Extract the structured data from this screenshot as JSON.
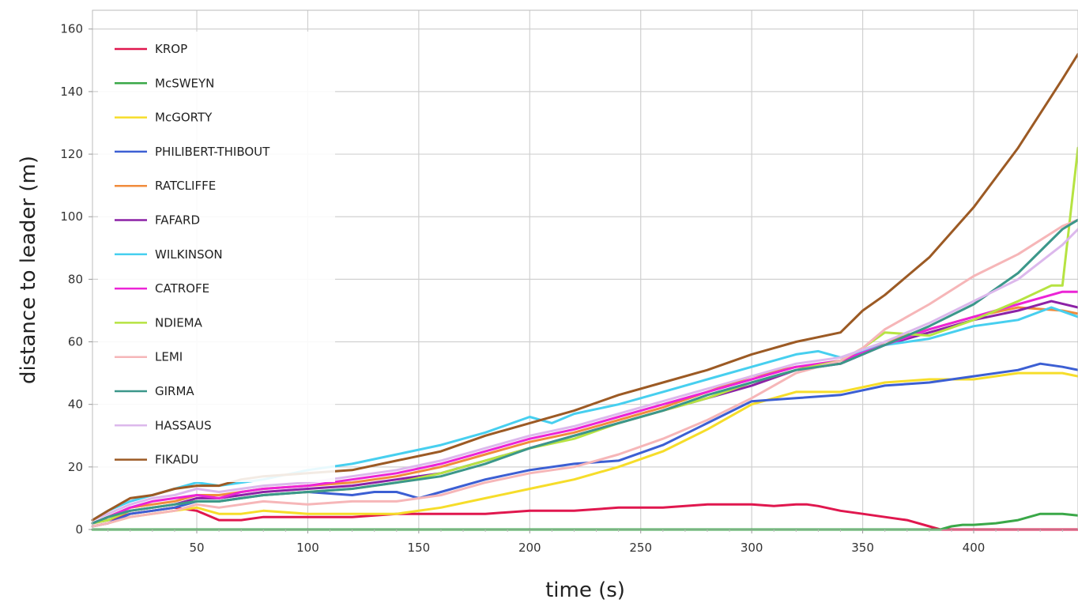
{
  "chart_data": {
    "type": "line",
    "title": "",
    "xlabel": "time (s)",
    "ylabel": "distance to leader (m)",
    "xlim": [
      3,
      447
    ],
    "ylim": [
      0,
      166
    ],
    "xticks": [
      50,
      100,
      150,
      200,
      250,
      300,
      350,
      400
    ],
    "yticks": [
      0,
      20,
      40,
      60,
      80,
      100,
      120,
      140,
      160
    ],
    "grid": true,
    "legend_position": "top-left",
    "series": [
      {
        "name": "KROP",
        "color": "#e0174e",
        "x": [
          3,
          10,
          20,
          30,
          40,
          50,
          60,
          70,
          80,
          100,
          120,
          140,
          160,
          180,
          200,
          220,
          240,
          260,
          280,
          290,
          300,
          310,
          320,
          325,
          330,
          340,
          350,
          360,
          370,
          380,
          385,
          390,
          400,
          420,
          440,
          447
        ],
        "y": [
          2,
          3,
          5,
          6,
          7,
          6,
          3,
          3,
          4,
          4,
          4,
          5,
          5,
          5,
          6,
          6,
          7,
          7,
          8,
          8,
          8,
          7.5,
          8,
          8,
          7.5,
          6,
          5,
          4,
          3,
          1,
          0,
          0,
          0,
          0,
          0,
          0
        ]
      },
      {
        "name": "McSWEYN",
        "color": "#3aa848",
        "x": [
          3,
          100,
          200,
          300,
          385,
          390,
          395,
          400,
          410,
          420,
          430,
          440,
          447
        ],
        "y": [
          0,
          0,
          0,
          0,
          0,
          1,
          1.5,
          1.5,
          2,
          3,
          5,
          5,
          4.5
        ]
      },
      {
        "name": "McGORTY",
        "color": "#f6dd2a",
        "x": [
          3,
          10,
          20,
          30,
          40,
          50,
          60,
          70,
          80,
          100,
          120,
          140,
          160,
          180,
          200,
          220,
          240,
          260,
          280,
          300,
          320,
          340,
          360,
          380,
          400,
          420,
          440,
          447
        ],
        "y": [
          1,
          2,
          4,
          5,
          6,
          7,
          5,
          5,
          6,
          5,
          5,
          5,
          7,
          10,
          13,
          16,
          20,
          25,
          32,
          40,
          44,
          44,
          47,
          48,
          48,
          50,
          50,
          49
        ]
      },
      {
        "name": "PHILIBERT-THIBOUT",
        "color": "#3c5fd3",
        "x": [
          3,
          10,
          20,
          30,
          40,
          50,
          60,
          70,
          80,
          100,
          120,
          130,
          140,
          150,
          160,
          180,
          200,
          220,
          240,
          260,
          280,
          300,
          320,
          340,
          360,
          380,
          400,
          420,
          430,
          440,
          447
        ],
        "y": [
          1,
          2,
          5,
          6,
          7,
          9,
          9,
          10,
          11,
          12,
          11,
          12,
          12,
          10,
          12,
          16,
          19,
          21,
          22,
          27,
          34,
          41,
          42,
          43,
          46,
          47,
          49,
          51,
          53,
          52,
          51
        ]
      },
      {
        "name": "RATCLIFFE",
        "color": "#f08c3c",
        "x": [
          3,
          10,
          20,
          30,
          40,
          50,
          60,
          70,
          80,
          100,
          120,
          140,
          160,
          180,
          200,
          220,
          240,
          260,
          280,
          300,
          320,
          340,
          360,
          380,
          400,
          420,
          440,
          447
        ],
        "y": [
          2,
          4,
          7,
          8,
          9,
          11,
          11,
          12,
          13,
          14,
          15,
          17,
          20,
          24,
          28,
          31,
          35,
          39,
          44,
          49,
          52,
          53,
          60,
          64,
          68,
          71,
          70,
          69
        ]
      },
      {
        "name": "FAFARD",
        "color": "#8c22a6",
        "x": [
          3,
          10,
          20,
          30,
          40,
          50,
          60,
          70,
          80,
          100,
          120,
          140,
          160,
          180,
          200,
          220,
          240,
          260,
          280,
          300,
          320,
          340,
          360,
          380,
          400,
          420,
          435,
          447
        ],
        "y": [
          2,
          4,
          6,
          7,
          8,
          10,
          10,
          11,
          12,
          13,
          14,
          16,
          18,
          22,
          26,
          30,
          34,
          38,
          42,
          46,
          51,
          53,
          59,
          63,
          67,
          70,
          73,
          71
        ]
      },
      {
        "name": "WILKINSON",
        "color": "#47cfef",
        "x": [
          3,
          10,
          20,
          30,
          40,
          50,
          60,
          70,
          80,
          100,
          120,
          140,
          160,
          180,
          200,
          210,
          220,
          240,
          260,
          280,
          300,
          320,
          330,
          340,
          360,
          380,
          400,
          420,
          435,
          447
        ],
        "y": [
          3,
          6,
          9,
          11,
          13,
          15,
          14,
          15,
          16,
          19,
          21,
          24,
          27,
          31,
          36,
          34,
          37,
          40,
          44,
          48,
          52,
          56,
          57,
          55,
          59,
          61,
          65,
          67,
          71,
          68
        ]
      },
      {
        "name": "CATROFE",
        "color": "#ec24d6",
        "x": [
          3,
          10,
          20,
          30,
          40,
          50,
          60,
          70,
          80,
          100,
          120,
          140,
          160,
          180,
          200,
          220,
          240,
          260,
          280,
          300,
          320,
          340,
          360,
          380,
          400,
          420,
          440,
          447
        ],
        "y": [
          2,
          4,
          7,
          9,
          10,
          11,
          10,
          12,
          13,
          14,
          16,
          18,
          21,
          25,
          29,
          32,
          36,
          40,
          44,
          48,
          52,
          54,
          59,
          64,
          68,
          72,
          76,
          76
        ]
      },
      {
        "name": "NDIEMA",
        "color": "#b6e342",
        "x": [
          3,
          10,
          20,
          30,
          40,
          50,
          60,
          70,
          80,
          100,
          120,
          140,
          160,
          180,
          200,
          220,
          240,
          260,
          280,
          300,
          320,
          340,
          350,
          360,
          380,
          400,
          420,
          435,
          440,
          447
        ],
        "y": [
          2,
          3,
          6,
          7,
          8,
          9,
          9,
          10,
          11,
          12,
          13,
          15,
          18,
          22,
          26,
          29,
          34,
          38,
          42,
          47,
          51,
          54,
          58,
          63,
          62,
          67,
          73,
          78,
          78,
          122
        ]
      },
      {
        "name": "LEMI",
        "color": "#f6b6b8",
        "x": [
          3,
          10,
          20,
          30,
          40,
          50,
          60,
          70,
          80,
          100,
          120,
          140,
          160,
          180,
          200,
          220,
          240,
          260,
          280,
          300,
          320,
          340,
          350,
          360,
          380,
          400,
          420,
          440,
          447
        ],
        "y": [
          1,
          2,
          4,
          5,
          6,
          8,
          7,
          8,
          9,
          8,
          9,
          9,
          11,
          15,
          18,
          20,
          24,
          29,
          35,
          42,
          50,
          54,
          58,
          64,
          72,
          81,
          88,
          97,
          99
        ]
      },
      {
        "name": "GIRMA",
        "color": "#3b978a",
        "x": [
          3,
          10,
          20,
          30,
          40,
          50,
          60,
          70,
          80,
          100,
          120,
          140,
          160,
          180,
          200,
          220,
          240,
          260,
          280,
          300,
          320,
          340,
          360,
          380,
          400,
          420,
          440,
          447
        ],
        "y": [
          2,
          4,
          6,
          7,
          8,
          9,
          9,
          10,
          11,
          12,
          13,
          15,
          17,
          21,
          26,
          30,
          34,
          38,
          43,
          47,
          51,
          53,
          59,
          65,
          72,
          82,
          96,
          99
        ]
      },
      {
        "name": "HASSAUS",
        "color": "#dcb8ec",
        "x": [
          3,
          10,
          20,
          30,
          40,
          50,
          60,
          70,
          80,
          100,
          120,
          140,
          160,
          180,
          200,
          220,
          240,
          260,
          280,
          300,
          320,
          340,
          360,
          380,
          400,
          420,
          440,
          447
        ],
        "y": [
          3,
          5,
          8,
          10,
          11,
          13,
          12,
          13,
          14,
          15,
          17,
          19,
          22,
          26,
          30,
          33,
          37,
          41,
          45,
          49,
          53,
          55,
          60,
          66,
          73,
          80,
          91,
          96
        ]
      },
      {
        "name": "FIKADU",
        "color": "#9c5a24",
        "x": [
          3,
          10,
          20,
          30,
          40,
          50,
          60,
          70,
          80,
          100,
          120,
          140,
          160,
          180,
          200,
          220,
          240,
          260,
          280,
          300,
          320,
          340,
          350,
          360,
          380,
          400,
          420,
          440,
          447
        ],
        "y": [
          3,
          6,
          10,
          11,
          13,
          14,
          14,
          16,
          17,
          18,
          19,
          22,
          25,
          30,
          34,
          38,
          43,
          47,
          51,
          56,
          60,
          63,
          70,
          75,
          87,
          103,
          122,
          144,
          152
        ]
      }
    ]
  }
}
